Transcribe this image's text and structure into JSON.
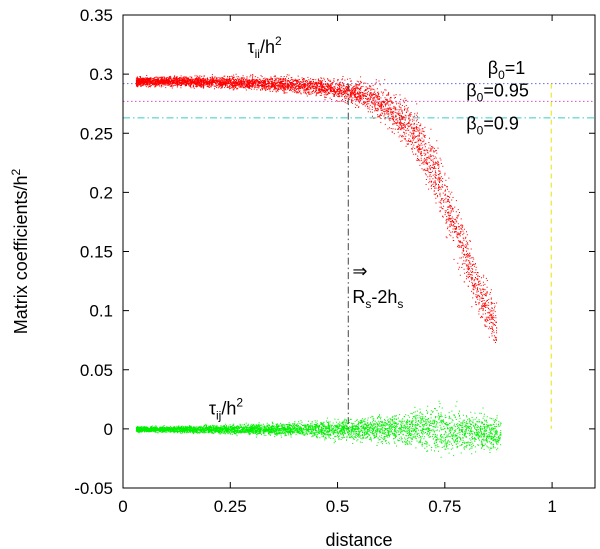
{
  "chart_data": {
    "type": "scatter",
    "xlabel": "distance",
    "ylabel": "Matrix coefficients/h",
    "ylabel_sup": "2",
    "xlim": [
      0,
      1.1
    ],
    "ylim": [
      -0.05,
      0.35
    ],
    "x_ticks": [
      0,
      0.25,
      0.5,
      0.75,
      1
    ],
    "x_tick_labels": [
      "0",
      "0.25",
      "0.5",
      "0.75",
      "1"
    ],
    "y_ticks": [
      -0.05,
      0,
      0.05,
      0.1,
      0.15,
      0.2,
      0.25,
      0.3,
      0.35
    ],
    "y_tick_labels": [
      "-0.05",
      "0",
      "0.05",
      "0.1",
      "0.15",
      "0.2",
      "0.25",
      "0.3",
      "0.35"
    ],
    "grid": false,
    "series": [
      {
        "color": "#ff0000",
        "label": {
          "base": "τ",
          "sub": "ii",
          "slash": "/h",
          "sup": "2",
          "x": 0.33,
          "y": 0.318
        },
        "envelope": [
          {
            "x": 0.03,
            "y": 0.294,
            "spread": 0.0035
          },
          {
            "x": 0.15,
            "y": 0.294,
            "spread": 0.004
          },
          {
            "x": 0.3,
            "y": 0.293,
            "spread": 0.005
          },
          {
            "x": 0.45,
            "y": 0.29,
            "spread": 0.007
          },
          {
            "x": 0.55,
            "y": 0.284,
            "spread": 0.01
          },
          {
            "x": 0.62,
            "y": 0.272,
            "spread": 0.015
          },
          {
            "x": 0.68,
            "y": 0.25,
            "spread": 0.02
          },
          {
            "x": 0.73,
            "y": 0.215,
            "spread": 0.025
          },
          {
            "x": 0.78,
            "y": 0.165,
            "spread": 0.025
          },
          {
            "x": 0.83,
            "y": 0.115,
            "spread": 0.022
          },
          {
            "x": 0.87,
            "y": 0.085,
            "spread": 0.02
          }
        ]
      },
      {
        "color": "#00ee00",
        "label": {
          "base": "τ",
          "sub": "ij",
          "slash": "/h",
          "sup": "2",
          "x": 0.24,
          "y": 0.012
        },
        "envelope": [
          {
            "x": 0.03,
            "y": 0.0,
            "spread": 0.002
          },
          {
            "x": 0.2,
            "y": 0.0,
            "spread": 0.003
          },
          {
            "x": 0.4,
            "y": 0.0,
            "spread": 0.005
          },
          {
            "x": 0.55,
            "y": 0.0,
            "spread": 0.009
          },
          {
            "x": 0.65,
            "y": 0.001,
            "spread": 0.013
          },
          {
            "x": 0.72,
            "y": 0.0,
            "spread": 0.018
          },
          {
            "x": 0.8,
            "y": -0.002,
            "spread": 0.016
          },
          {
            "x": 0.88,
            "y": -0.004,
            "spread": 0.013
          }
        ]
      }
    ],
    "reference_lines": [
      {
        "y": 0.292,
        "color": "#6666ee",
        "style": "dotted",
        "label": {
          "base": "β",
          "sub": "0",
          "text": "=1",
          "x": 0.85,
          "y": 0.3
        }
      },
      {
        "y": 0.277,
        "color": "#cc55cc",
        "style": "dotted",
        "label": {
          "base": "β",
          "sub": "0",
          "text": "=0.95",
          "x": 0.8,
          "y": 0.281
        }
      },
      {
        "y": 0.263,
        "color": "#33cccc",
        "style": "dashdot",
        "label": {
          "base": "β",
          "sub": "0",
          "text": "=0.9",
          "x": 0.8,
          "y": 0.253
        }
      }
    ],
    "vertical_lines": [
      {
        "x": 0.525,
        "y0": 0.292,
        "y1": 0.0,
        "color": "#444444",
        "style": "dashdot"
      },
      {
        "x": 0.998,
        "y0": 0.292,
        "y1": 0.0,
        "color": "#e6e600",
        "style": "dashed"
      }
    ],
    "annotation": {
      "arrow": "⇒",
      "text_base": "R",
      "text_sub": "s",
      "text_mid": "-2h",
      "text_sub2": "s",
      "x": 0.53,
      "y": 0.11
    }
  }
}
